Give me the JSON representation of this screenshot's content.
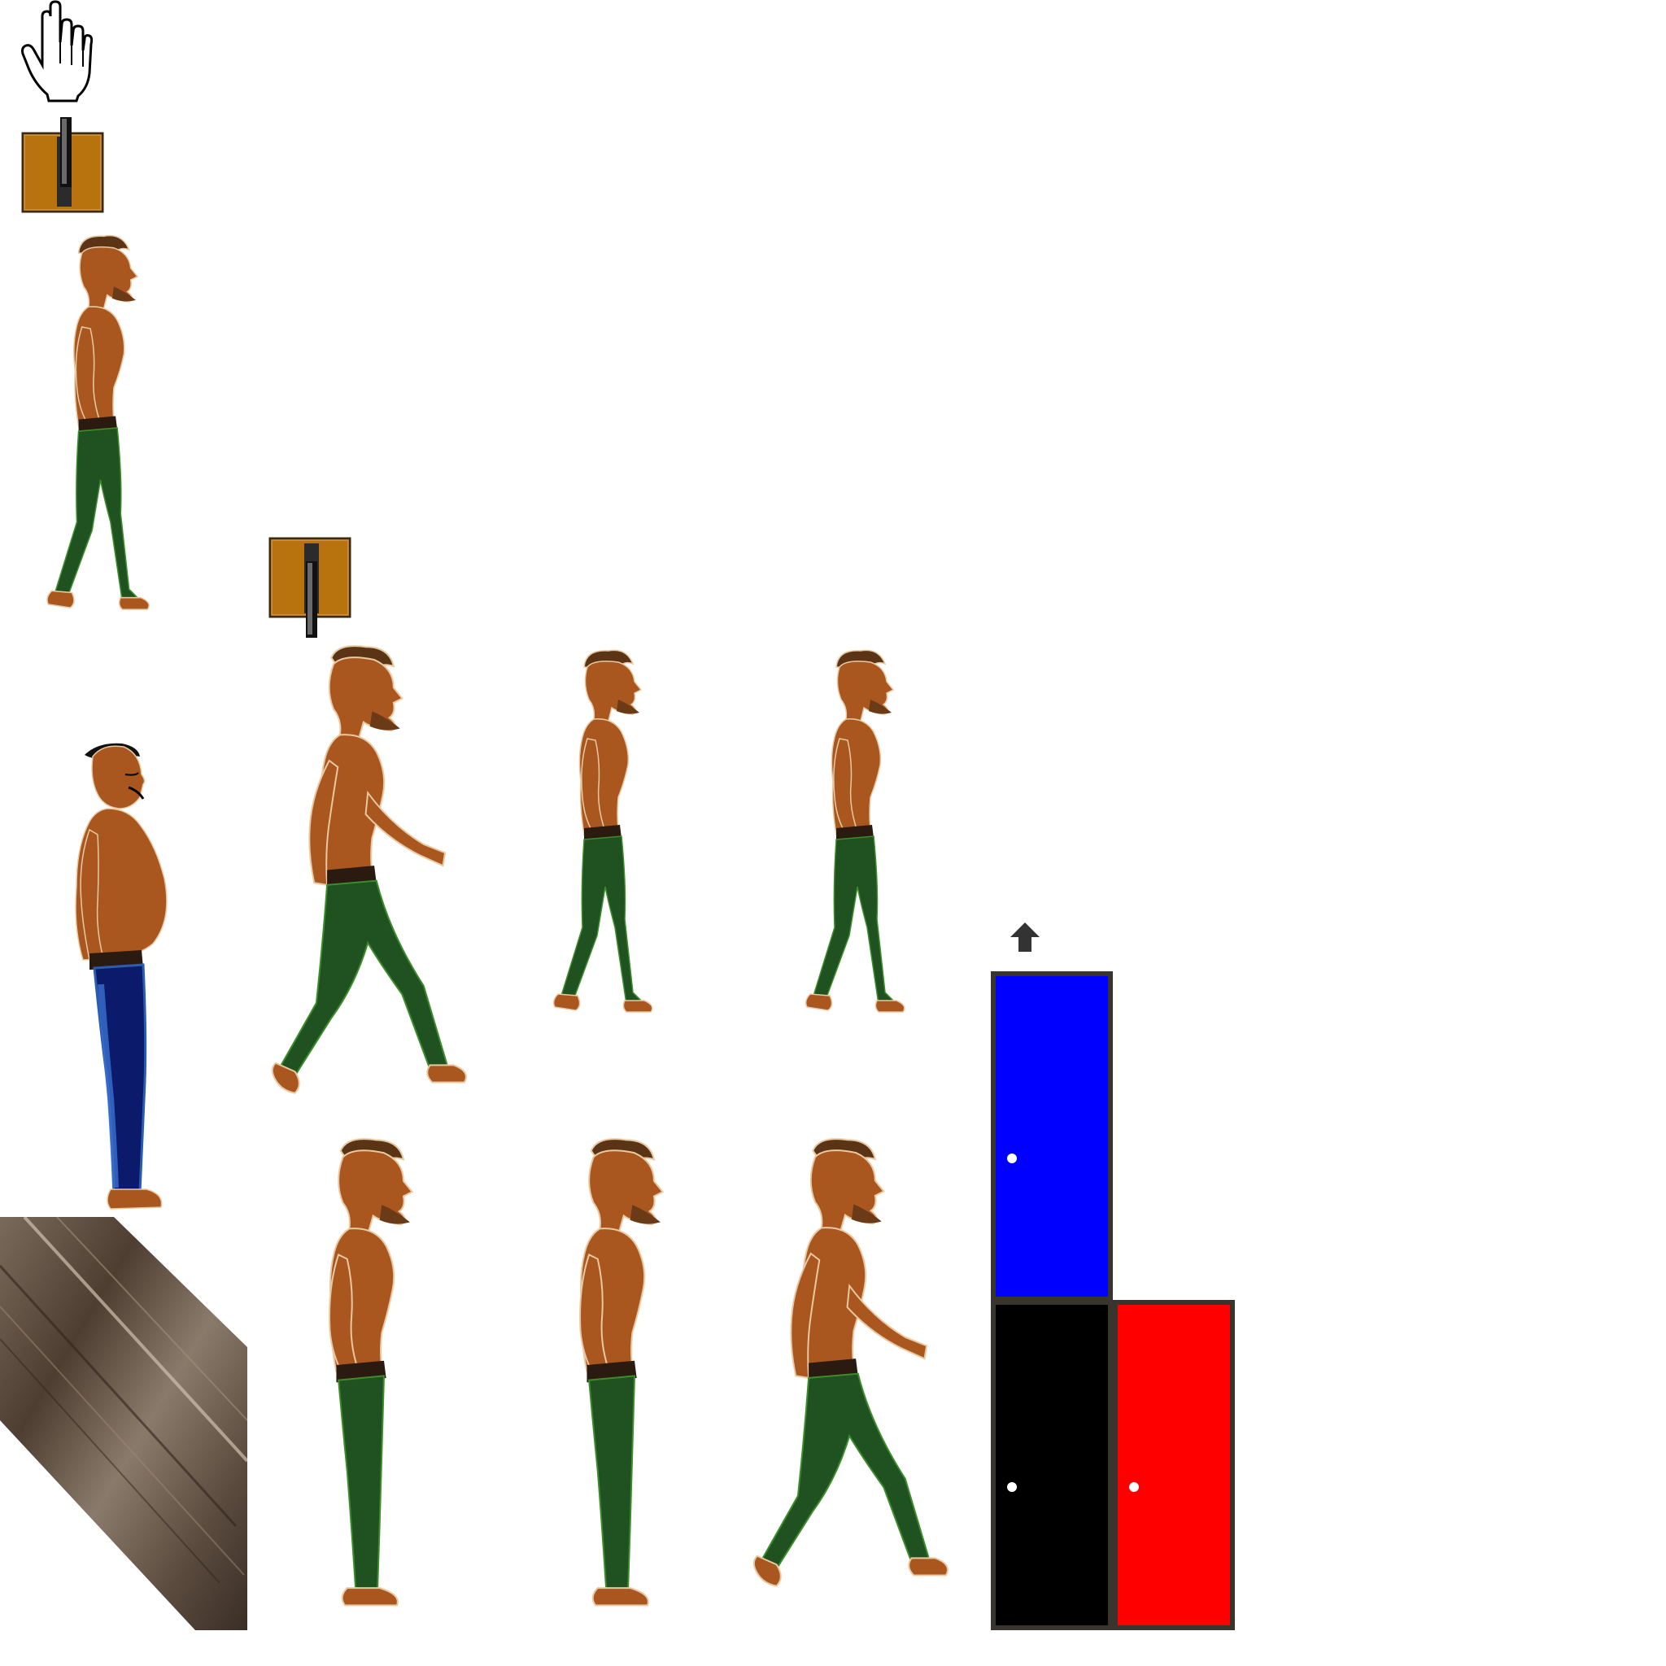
{
  "sheet": {
    "background": "#ffffff"
  },
  "cursor": {
    "icon": "hand-pointer-icon"
  },
  "switches": [
    {
      "name": "lever-switch-up",
      "state": "up",
      "color": "#b8720e"
    },
    {
      "name": "lever-switch-down",
      "state": "down",
      "color": "#b8720e"
    }
  ],
  "characters": {
    "skin": "#a9561f",
    "pants_green": "#1f5220",
    "pants_blue": "#0c1a6b",
    "hair": "#5b3416"
  },
  "plank": {
    "icon": "wood-plank-texture"
  },
  "up_arrow": {
    "icon": "up-arrow-icon"
  },
  "doors": [
    {
      "name": "door-blue",
      "color": "#0000ff"
    },
    {
      "name": "door-black",
      "color": "#000000"
    },
    {
      "name": "door-red",
      "color": "#ff0000"
    }
  ]
}
